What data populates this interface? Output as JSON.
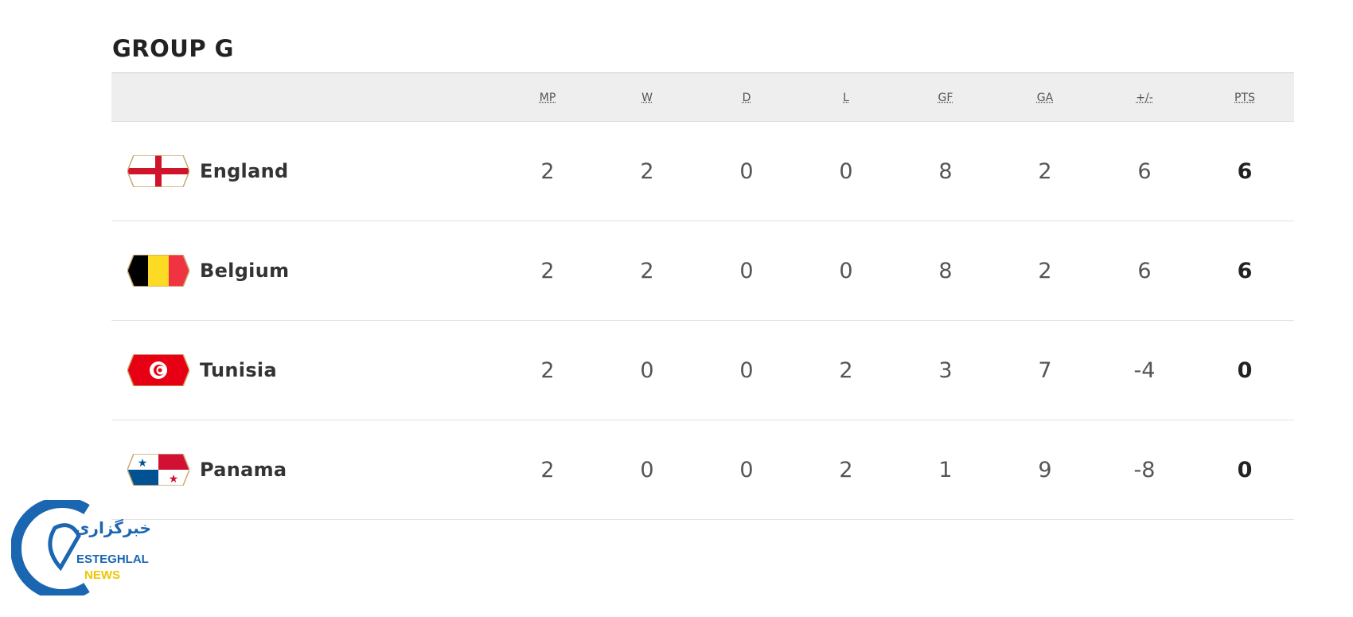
{
  "group_title": "GROUP G",
  "columns": [
    "MP",
    "W",
    "D",
    "L",
    "GF",
    "GA",
    "+/-",
    "PTS"
  ],
  "rows": [
    {
      "team": "England",
      "flag": "england-flag-icon",
      "values": [
        "2",
        "2",
        "0",
        "0",
        "8",
        "2",
        "6",
        "6"
      ]
    },
    {
      "team": "Belgium",
      "flag": "belgium-flag-icon",
      "values": [
        "2",
        "2",
        "0",
        "0",
        "8",
        "2",
        "6",
        "6"
      ]
    },
    {
      "team": "Tunisia",
      "flag": "tunisia-flag-icon",
      "values": [
        "2",
        "0",
        "0",
        "2",
        "3",
        "7",
        "-4",
        "0"
      ]
    },
    {
      "team": "Panama",
      "flag": "panama-flag-icon",
      "values": [
        "2",
        "0",
        "0",
        "2",
        "1",
        "9",
        "-8",
        "0"
      ]
    }
  ],
  "watermark": {
    "arabic": "خبرگزاری",
    "line1": "ESTEGHLAL",
    "line2": "NEWS"
  },
  "colors": {
    "header_bg": "#eeeeee",
    "logo_blue": "#1a66b0",
    "logo_yellow": "#f2c500"
  }
}
